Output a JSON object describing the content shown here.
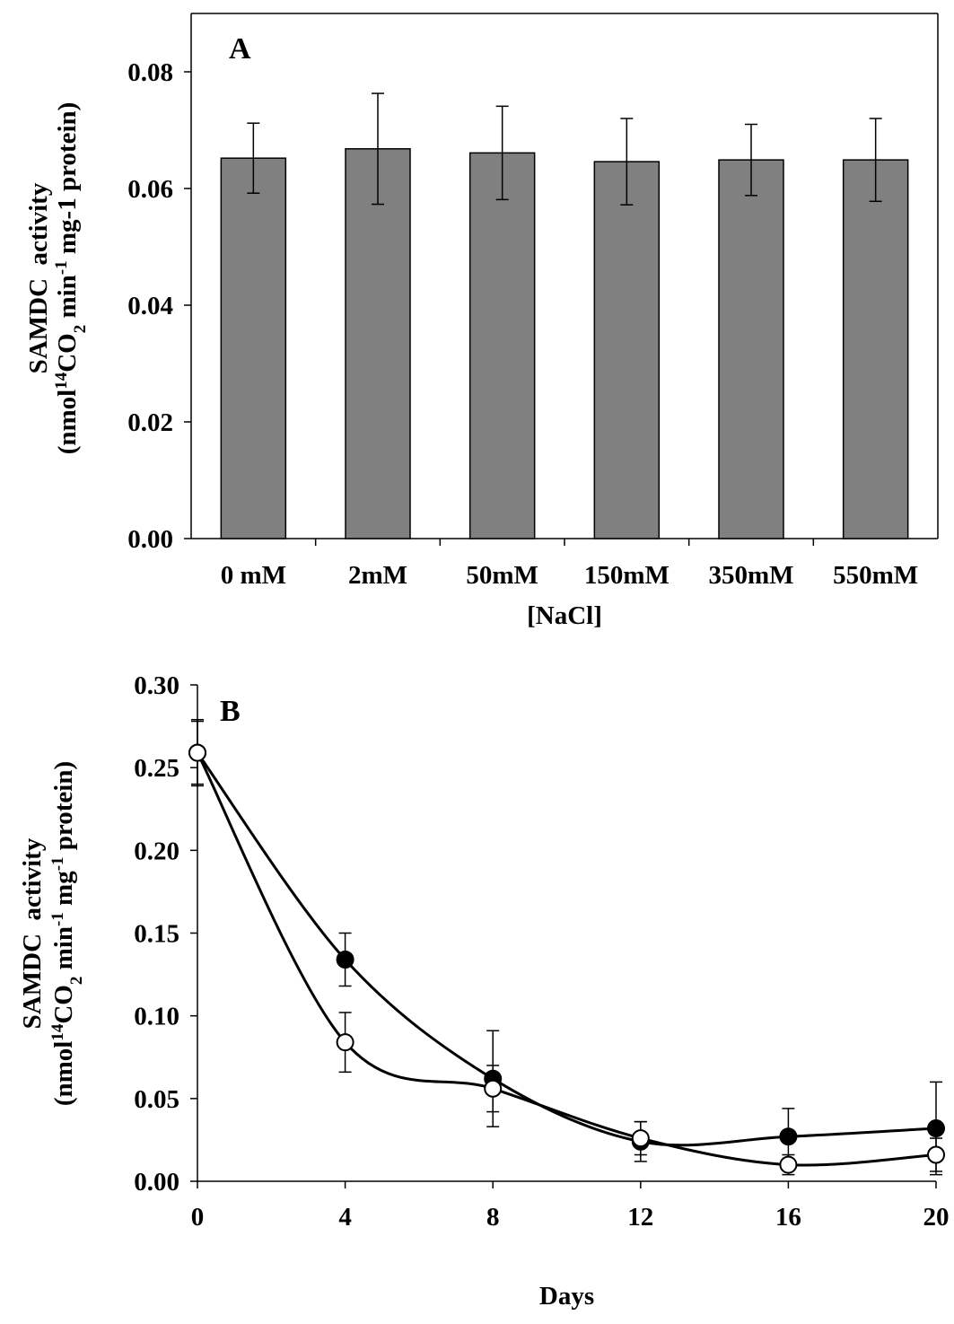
{
  "chart_data": [
    {
      "type": "bar",
      "panel": "A",
      "categories": [
        "0 mM",
        "2mM",
        "50mM",
        "150mM",
        "350mM",
        "550mM"
      ],
      "values": [
        0.0652,
        0.0668,
        0.0661,
        0.0646,
        0.0649,
        0.0649
      ],
      "errors": [
        0.006,
        0.0095,
        0.008,
        0.0074,
        0.0061,
        0.0071
      ],
      "color": "#808080",
      "x_label": "[NaCl]",
      "y_label": [
        "SAMDC  activity",
        [
          "(nmol",
          "14",
          "CO",
          "2",
          " min",
          "-1",
          " mg-1 protein)"
        ]
      ],
      "ylim": [
        0,
        0.09
      ],
      "yticks": [
        {
          "value": 0,
          "label": "0.00"
        },
        {
          "value": 0.02,
          "label": "0.02"
        },
        {
          "value": 0.04,
          "label": "0.04"
        },
        {
          "value": 0.06,
          "label": "0.06"
        },
        {
          "value": 0.08,
          "label": "0.08"
        }
      ],
      "frame": true
    },
    {
      "type": "line",
      "panel": "B",
      "x": [
        0,
        4,
        8,
        12,
        16,
        20
      ],
      "series": [
        {
          "color": "#000000",
          "marker_fill": "#000000",
          "values": [
            0.259,
            0.134,
            0.062,
            0.024,
            0.027,
            0.032
          ],
          "errors": [
            0.019,
            0.016,
            0.029,
            0.012,
            0.017,
            0.028
          ]
        },
        {
          "color": "#000000",
          "marker_fill": "#ffffff",
          "values": [
            0.259,
            0.084,
            0.056,
            0.026,
            0.01,
            0.016
          ],
          "errors": [
            0.02,
            0.018,
            0.014,
            0.01,
            0.006,
            0.01
          ]
        }
      ],
      "x_label": "Days",
      "y_label": [
        "SAMDC  activity",
        [
          "(nmol",
          "14",
          "CO",
          "2",
          " min",
          "-1",
          " mg",
          "-1",
          " protein)"
        ]
      ],
      "xlim": [
        0,
        20
      ],
      "xticks": [
        0,
        4,
        8,
        12,
        16,
        20
      ],
      "ylim": [
        0,
        0.3
      ],
      "yticks": [
        {
          "value": 0,
          "label": "0.00"
        },
        {
          "value": 0.05,
          "label": "0.05"
        },
        {
          "value": 0.1,
          "label": "0.10"
        },
        {
          "value": 0.15,
          "label": "0.15"
        },
        {
          "value": 0.2,
          "label": "0.20"
        },
        {
          "value": 0.25,
          "label": "0.25"
        },
        {
          "value": 0.3,
          "label": "0.30"
        }
      ],
      "frame": false
    }
  ]
}
